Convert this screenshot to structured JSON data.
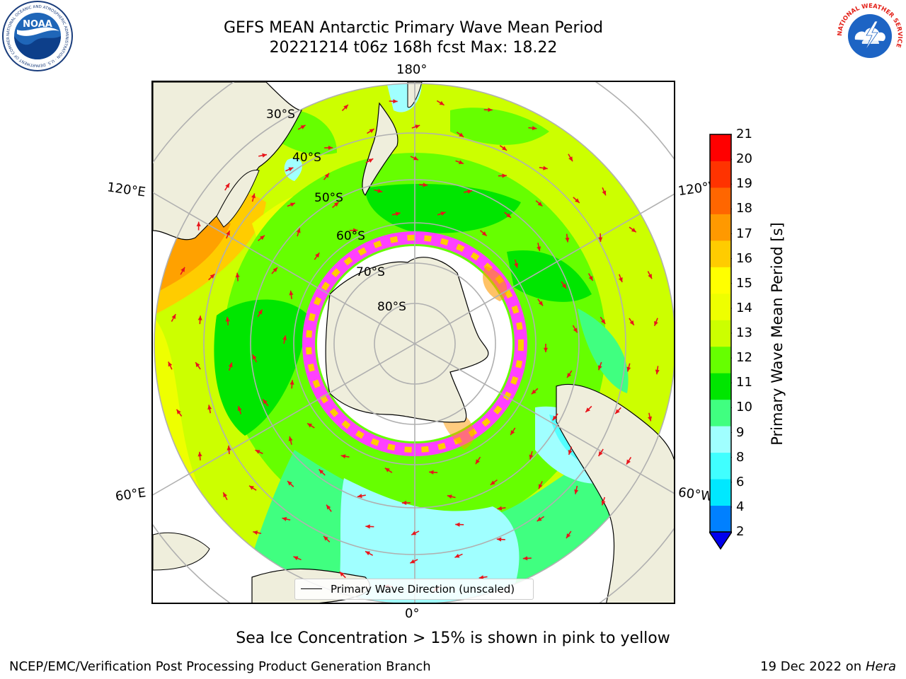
{
  "header": {
    "title_line1": "GEFS MEAN Antarctic Primary Wave Mean Period",
    "title_line2": "20221214 t06z 168h fcst   Max: 18.22"
  },
  "logos": {
    "left": "NOAA",
    "left_ring_text": "NATIONAL OCEANIC AND ATMOSPHERIC ADMINISTRATION · U.S. DEPARTMENT OF COMMERCE",
    "right_ring_text": "NATIONAL WEATHER SERVICE"
  },
  "map": {
    "projection": "south-polar-stereographic",
    "lon_labels": {
      "top": "180°",
      "bottom": "0°",
      "upper_left": "120°E",
      "lower_left": "60°E",
      "upper_right": "120°W",
      "lower_right": "60°W"
    },
    "lat_labels": [
      "30°S",
      "40°S",
      "50°S",
      "60°S",
      "70°S",
      "80°S"
    ],
    "legend_entry": "Primary Wave Direction (unscaled)",
    "arrow_color": "#e8151b"
  },
  "colorbar": {
    "label": "Primary Wave Mean Period [s]",
    "ticks": [
      "21",
      "20",
      "19",
      "18",
      "17",
      "16",
      "15",
      "14",
      "13",
      "12",
      "11",
      "10",
      "9",
      "8",
      "6",
      "4",
      "2"
    ],
    "colors": [
      "#0000ee",
      "#0080ff",
      "#00e8ff",
      "#40ffff",
      "#a0ffff",
      "#40ff80",
      "#00e600",
      "#66ff00",
      "#ccff00",
      "#eeff00",
      "#ffff00",
      "#ffcc00",
      "#ff9900",
      "#ff6600",
      "#ff3300",
      "#ff0000"
    ],
    "extend": "min"
  },
  "caption": "Sea Ice Concentration > 15% is shown in pink to yellow",
  "footer": {
    "left": "NCEP/EMC/Verification Post Processing Product Generation Branch",
    "right_date": "19 Dec 2022 on",
    "right_machine": "Hera"
  }
}
